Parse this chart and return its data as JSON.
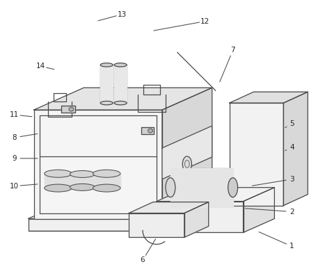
{
  "bg_color": "#ffffff",
  "line_color": "#4a4a4a",
  "line_width": 0.9,
  "label_color": "#222222",
  "label_fontsize": 7.5,
  "figsize": [
    4.44,
    3.87
  ],
  "dpi": 100,
  "fill_top": "#e8e8e8",
  "fill_front": "#f5f5f5",
  "fill_right": "#dedede",
  "fill_light": "#f0f0f0"
}
